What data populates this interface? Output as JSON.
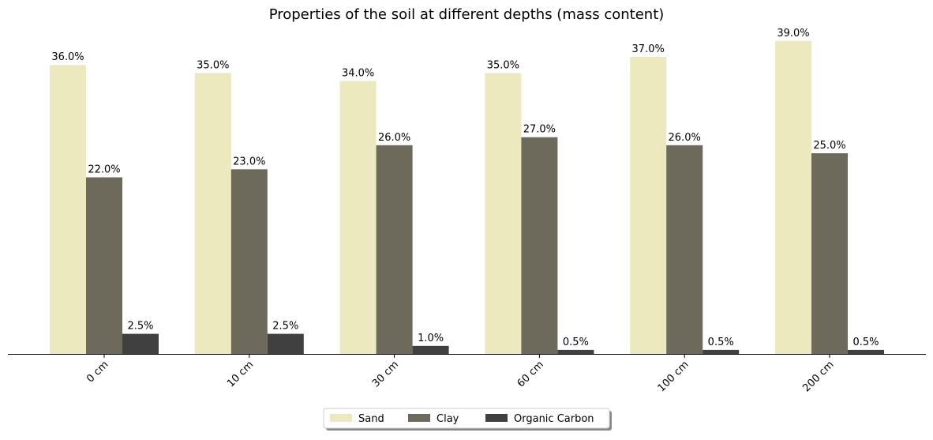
{
  "chart_data": {
    "type": "bar",
    "title": "Properties of the soil at different depths (mass content)",
    "xlabel": "",
    "ylabel": "",
    "ylim": [
      0,
      40.95
    ],
    "grid": false,
    "categories": [
      "0 cm",
      "10 cm",
      "30 cm",
      "60 cm",
      "100 cm",
      "200 cm"
    ],
    "series": [
      {
        "name": "Sand",
        "color": "#ebe9bd",
        "values": [
          36.0,
          35.0,
          34.0,
          35.0,
          37.0,
          39.0
        ],
        "labels": [
          "36.0%",
          "35.0%",
          "34.0%",
          "35.0%",
          "37.0%",
          "39.0%"
        ]
      },
      {
        "name": "Clay",
        "color": "#6e6a5b",
        "values": [
          22.0,
          23.0,
          26.0,
          27.0,
          26.0,
          25.0
        ],
        "labels": [
          "22.0%",
          "23.0%",
          "26.0%",
          "27.0%",
          "26.0%",
          "25.0%"
        ]
      },
      {
        "name": "Organic Carbon",
        "color": "#404040",
        "values": [
          2.5,
          2.5,
          1.0,
          0.5,
          0.5,
          0.5
        ],
        "labels": [
          "2.5%",
          "2.5%",
          "1.0%",
          "0.5%",
          "0.5%",
          "0.5%"
        ]
      }
    ],
    "legend_position": "bottom-center"
  }
}
